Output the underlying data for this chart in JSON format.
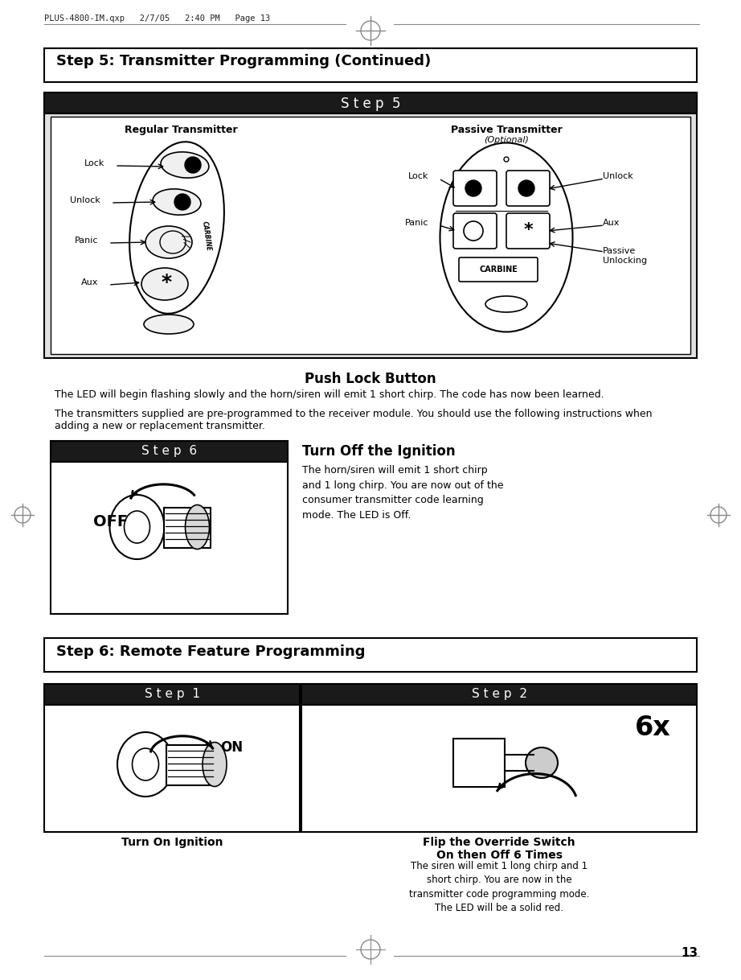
{
  "page_bg": "#ffffff",
  "border_color": "#000000",
  "header_text_top": "PLUS-4800-IM.qxp   2/7/05   2:40 PM   Page 13",
  "section1_title": "Step 5: Transmitter Programming (Continued)",
  "step5_header": "S t e p  5",
  "step5_header_bg": "#1a1a1a",
  "step5_header_fg": "#ffffff",
  "regular_transmitter_label": "Regular Transmitter",
  "passive_transmitter_label": "Passive Transmitter",
  "optional_label": "(Optional)",
  "lock_label": "Lock",
  "unlock_label": "Unlock",
  "panic_label": "Panic",
  "aux_label": "Aux",
  "push_lock_title": "Push Lock Button",
  "push_lock_text1": "The LED will begin flashing slowly and the horn/siren will emit 1 short chirp. The code has now been learned.",
  "push_lock_text2": "The transmitters supplied are pre-programmed to the receiver module. You should use the following instructions when\nadding a new or replacement transmitter.",
  "step6_header": "S t e p  6",
  "step6_header_bg": "#1a1a1a",
  "turn_off_title": "Turn Off the Ignition",
  "turn_off_text": "The horn/siren will emit 1 short chirp\nand 1 long chirp. You are now out of the\nconsumer transmitter code learning\nmode. The LED is Off.",
  "off_label": "OFF",
  "section2_title": "Step 6: Remote Feature Programming",
  "step1_header": "S t e p  1",
  "step2_header": "S t e p  2",
  "step1_header_bg": "#1a1a1a",
  "step2_header_bg": "#1a1a1a",
  "turn_on_label": "Turn On Ignition",
  "on_label": "ON",
  "flip_title": "Flip the Override Switch\nOn then Off 6 Times",
  "flip_text": "The siren will emit 1 long chirp and 1\nshort chirp. You are now in the\ntransmitter code programming mode.\nThe LED will be a solid red.",
  "sixX_label": "6x",
  "page_number": "13"
}
